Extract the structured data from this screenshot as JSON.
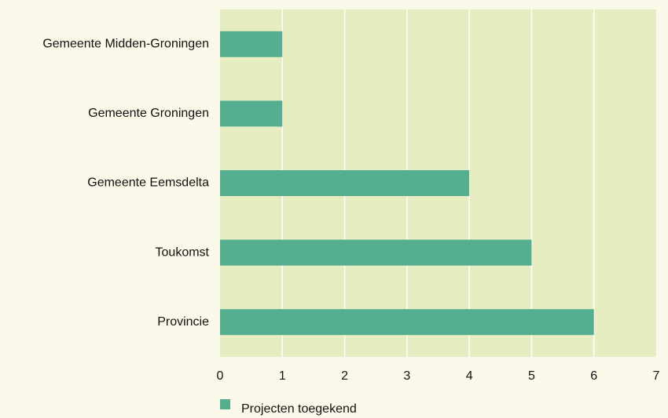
{
  "chart_data": {
    "type": "bar",
    "orientation": "horizontal",
    "categories": [
      "Gemeente Midden-Groningen",
      "Gemeente Groningen",
      "Gemeente Eemsdelta",
      "Toukomst",
      "Provincie"
    ],
    "series": [
      {
        "name": "Projecten toegekend",
        "color": "#55ae8f",
        "values": [
          1,
          1,
          4,
          5,
          6
        ]
      }
    ],
    "xlim": [
      0,
      7
    ],
    "xticks": [
      0,
      1,
      2,
      3,
      4,
      5,
      6,
      7
    ],
    "grid": true,
    "legend": "bottom"
  }
}
